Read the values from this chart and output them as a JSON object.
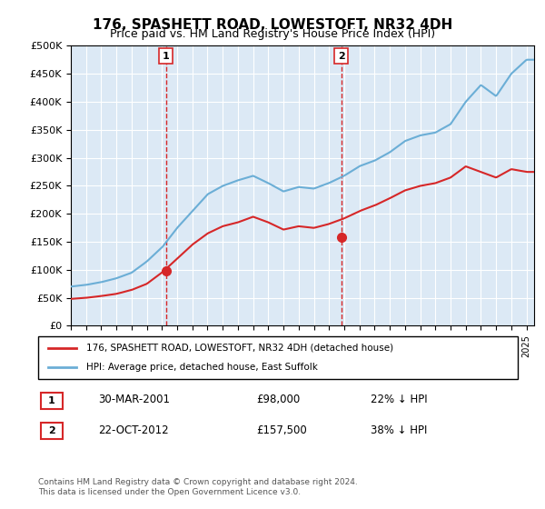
{
  "title": "176, SPASHETT ROAD, LOWESTOFT, NR32 4DH",
  "subtitle": "Price paid vs. HM Land Registry's House Price Index (HPI)",
  "legend_line1": "176, SPASHETT ROAD, LOWESTOFT, NR32 4DH (detached house)",
  "legend_line2": "HPI: Average price, detached house, East Suffolk",
  "transaction1_label": "1",
  "transaction1_date": "30-MAR-2001",
  "transaction1_price": "£98,000",
  "transaction1_hpi": "22% ↓ HPI",
  "transaction2_label": "2",
  "transaction2_date": "22-OCT-2012",
  "transaction2_price": "£157,500",
  "transaction2_hpi": "38% ↓ HPI",
  "footnote": "Contains HM Land Registry data © Crown copyright and database right 2024.\nThis data is licensed under the Open Government Licence v3.0.",
  "hpi_color": "#6baed6",
  "price_color": "#d62728",
  "vline_color": "#d62728",
  "bg_color": "#dce9f5",
  "plot_bg": "#dce9f5",
  "ylim": [
    0,
    500000
  ],
  "yticks": [
    0,
    50000,
    100000,
    150000,
    200000,
    250000,
    300000,
    350000,
    400000,
    450000,
    500000
  ],
  "xlim_start": 1995.0,
  "xlim_end": 2025.5,
  "transaction1_x": 2001.25,
  "transaction2_x": 2012.8,
  "transaction1_y": 98000,
  "transaction2_y": 157500
}
